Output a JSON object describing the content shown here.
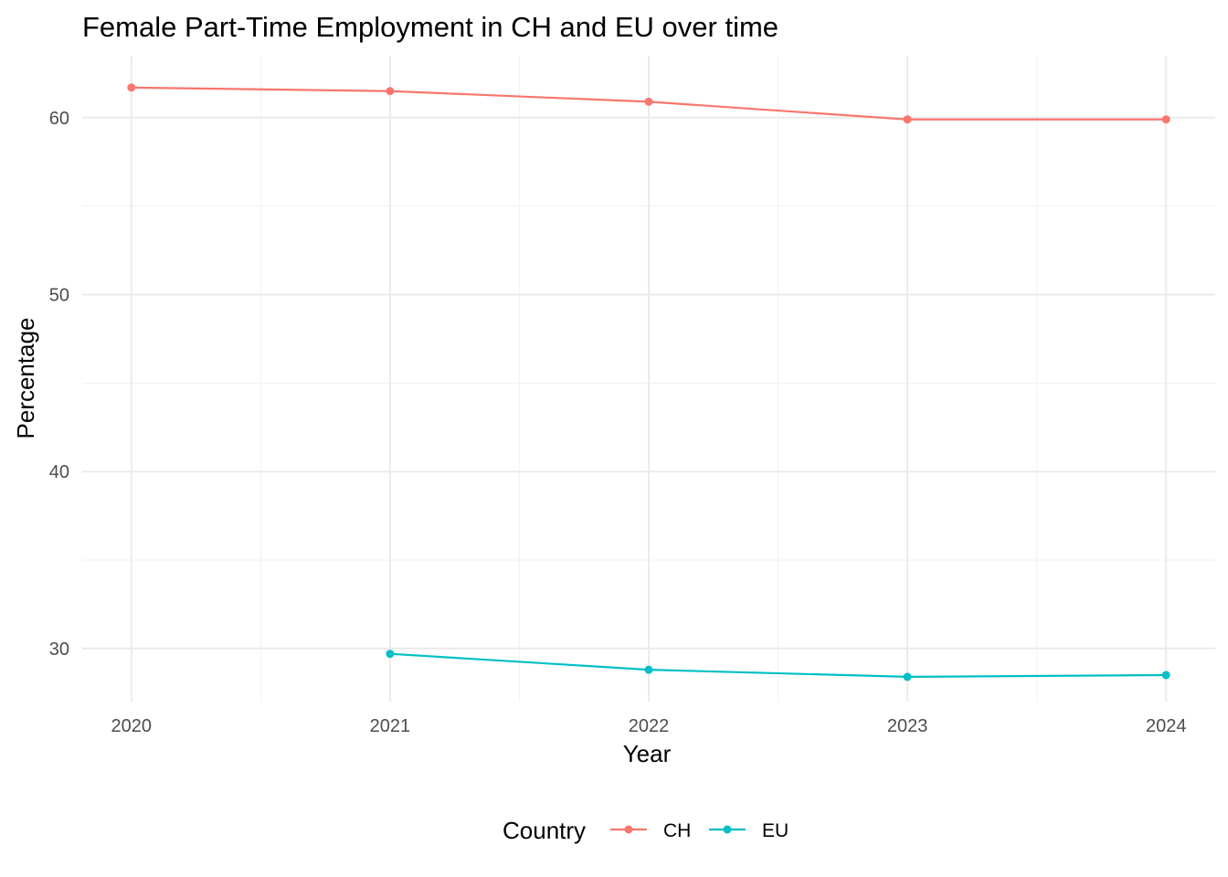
{
  "chart_data": {
    "type": "line",
    "title": "Female Part-Time Employment in CH and EU over time",
    "xlabel": "Year",
    "ylabel": "Percentage",
    "x_ticks": [
      "2020",
      "2021",
      "2022",
      "2023",
      "2024"
    ],
    "y_ticks": [
      "30",
      "40",
      "50",
      "60"
    ],
    "xlim": [
      2019.81,
      2024.19
    ],
    "ylim": [
      27.0,
      63.5
    ],
    "grid": true,
    "legend": {
      "title": "Country",
      "position": "bottom"
    },
    "series": [
      {
        "name": "CH",
        "color": "#F8766D",
        "x": [
          2020,
          2021,
          2022,
          2023,
          2024
        ],
        "y": [
          61.7,
          61.5,
          60.9,
          59.9,
          59.9
        ]
      },
      {
        "name": "EU",
        "color": "#00BFC4",
        "x": [
          2021,
          2022,
          2023,
          2024
        ],
        "y": [
          29.7,
          28.8,
          28.4,
          28.5
        ]
      }
    ]
  }
}
